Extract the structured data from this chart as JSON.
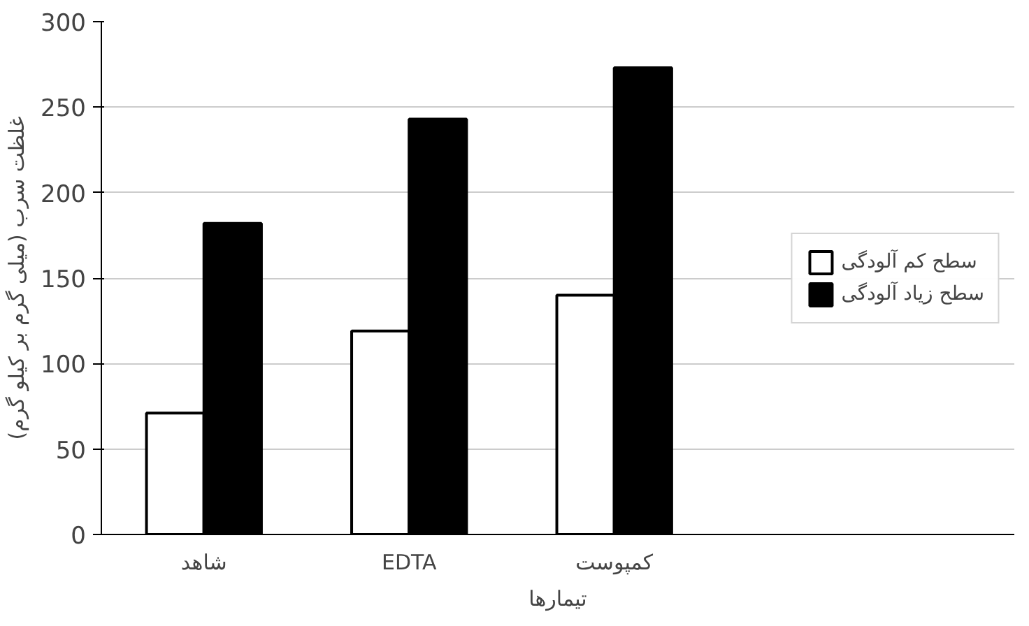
{
  "chart_data": {
    "type": "bar",
    "xlabel": "تیمارها",
    "ylabel": "غلظت سرب (میلی گرم بر کیلو گرم)",
    "categories": [
      "شاهد",
      "EDTA",
      "کمپوست"
    ],
    "series": [
      {
        "name": "سطح کم آلودگی",
        "color": "#ffffff",
        "values": [
          71,
          119,
          140
        ]
      },
      {
        "name": "سطح زیاد آلودگی",
        "color": "#000000",
        "values": [
          182,
          243,
          273
        ]
      }
    ],
    "ylim": [
      0,
      300
    ],
    "yticks": [
      0,
      50,
      100,
      150,
      200,
      250,
      300
    ],
    "grid": "y",
    "legend": "right"
  }
}
